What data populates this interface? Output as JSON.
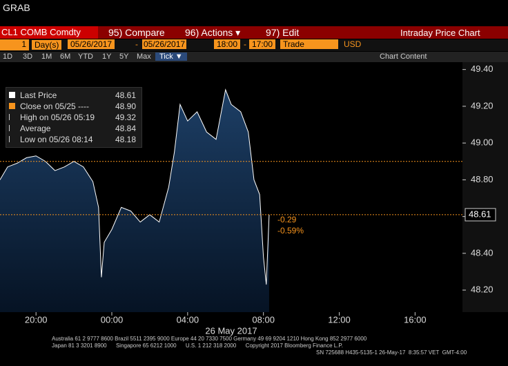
{
  "header": {
    "title": "GRAB"
  },
  "toolbar": {
    "ticker": "CL1 COMB Comdty",
    "compare": "95) Compare",
    "actions": "96) Actions ▾",
    "edit": "97) Edit",
    "chart_name": "Intraday Price Chart"
  },
  "settings": {
    "count": "1",
    "unit": "Day(s)",
    "start_date": "05/26/2017",
    "sep1": "-",
    "end_date": "05/26/2017",
    "start_time": "18:00",
    "sep2": "-",
    "end_time": "17:00",
    "field": "Trade",
    "currency": "USD"
  },
  "ranges": [
    "1D",
    "3D",
    "1M",
    "6M",
    "YTD",
    "1Y",
    "5Y",
    "Max",
    "Tick ▼"
  ],
  "chart_content": "Chart Content",
  "legend": [
    {
      "name": "Last Price",
      "value": "48.61"
    },
    {
      "name": "Close on 05/25 ----",
      "value": "48.90"
    },
    {
      "name": "High on 05/26 05:19",
      "value": "49.32"
    },
    {
      "name": "Average",
      "value": "48.84"
    },
    {
      "name": "Low on 05/26 08:14",
      "value": "48.18"
    }
  ],
  "chart_data": {
    "type": "area",
    "x_label": "26 May 2017",
    "x": [
      18.1,
      18.5,
      19,
      19.5,
      20,
      20.5,
      21,
      21.5,
      22,
      22.5,
      23,
      23.3,
      23.45,
      23.6,
      24,
      24.5,
      25,
      25.5,
      26,
      26.5,
      27,
      27.3,
      27.6,
      28,
      28.5,
      29,
      29.5,
      30,
      30.3,
      30.8,
      31.2,
      31.5,
      31.8,
      32,
      32.15,
      32.3
    ],
    "series": [
      {
        "name": "Last Price",
        "color": "#ffffff",
        "values": [
          48.8,
          48.87,
          48.89,
          48.92,
          48.93,
          48.9,
          48.85,
          48.87,
          48.9,
          48.87,
          48.79,
          48.65,
          48.27,
          48.46,
          48.53,
          48.65,
          48.63,
          48.57,
          48.61,
          48.57,
          48.76,
          48.95,
          49.21,
          49.12,
          49.17,
          49.06,
          49.02,
          49.29,
          49.21,
          49.17,
          49.06,
          48.8,
          48.72,
          48.38,
          48.23,
          48.61
        ]
      }
    ],
    "xlim": [
      18.1,
      42.5
    ],
    "ylim": [
      48.08,
      49.44
    ],
    "xticks": [
      {
        "value": 20,
        "label": "20:00"
      },
      {
        "value": 24,
        "label": "00:00"
      },
      {
        "value": 28,
        "label": "04:00"
      },
      {
        "value": 32,
        "label": "08:00"
      },
      {
        "value": 36,
        "label": "12:00"
      },
      {
        "value": 40,
        "label": "16:00"
      }
    ],
    "yticks": [
      {
        "value": 48.2,
        "label": "48.20"
      },
      {
        "value": 48.4,
        "label": "48.40"
      },
      {
        "value": 48.6,
        "label": "48.60"
      },
      {
        "value": 48.8,
        "label": "48.80"
      },
      {
        "value": 49,
        "label": "49.00"
      },
      {
        "value": 49.2,
        "label": "49.20"
      },
      {
        "value": 49.4,
        "label": "49.40"
      }
    ],
    "reference_lines": [
      {
        "value": 48.9,
        "color": "#f7941d"
      },
      {
        "value": 48.61,
        "label": "48.61",
        "color": "#f7941d"
      }
    ],
    "change_labels": [
      "-0.29",
      "-0.59%"
    ]
  },
  "footer": [
    "Australia 61 2 9777 8600 Brazil 5511 2395 9000 Europe 44 20 7330 7500 Germany 49 69 9204 1210 Hong Kong 852 2977 6000",
    "Japan 81 3 3201 8900      Singapore 65 6212 1000      U.S. 1 212 318 2000      Copyright 2017 Bloomberg Finance L.P.",
    "SN 725688 H435-5135-1 26-May-17  8:35:57 VET  GMT-4:00"
  ]
}
